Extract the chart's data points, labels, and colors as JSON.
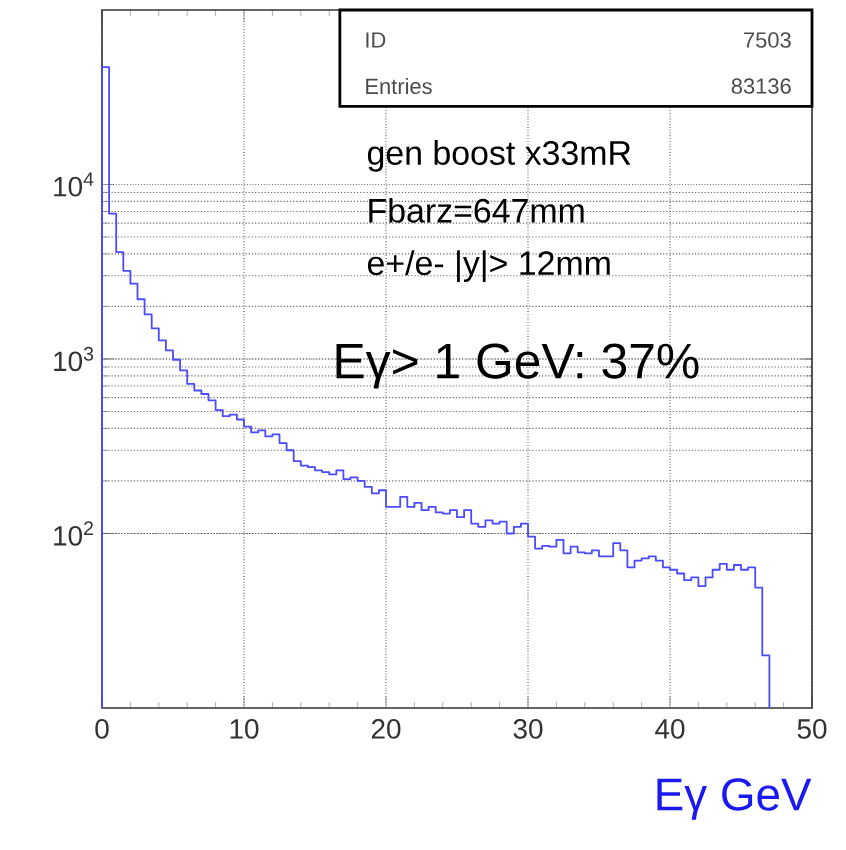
{
  "chart_data": {
    "type": "histogram",
    "xlabel": "Eγ GeV",
    "annotations": [
      "ID",
      "7503",
      "Entries",
      "83136",
      "gen boost x33mR",
      "Fbarz=647mm",
      "e+/e- |y|> 12mm",
      "Eγ> 1 GeV: 37%"
    ],
    "bins": [
      0,
      0.5,
      1,
      1.5,
      2,
      2.5,
      3,
      3.5,
      4,
      4.5,
      5,
      5.5,
      6,
      6.5,
      7,
      7.5,
      8,
      8.5,
      9,
      9.5,
      10,
      10.5,
      11,
      11.5,
      12,
      12.5,
      13,
      13.5,
      14,
      14.5,
      15,
      15.5,
      16,
      16.5,
      17,
      17.5,
      18,
      18.5,
      19,
      19.5,
      20,
      20.5,
      21,
      21.5,
      22,
      22.5,
      23,
      23.5,
      24,
      24.5,
      25,
      25.5,
      26,
      26.5,
      27,
      27.5,
      28,
      28.5,
      29,
      29.5,
      30,
      30.5,
      31,
      31.5,
      32,
      32.5,
      33,
      33.5,
      34,
      34.5,
      35,
      35.5,
      36,
      36.5,
      37,
      37.5,
      38,
      38.5,
      39,
      39.5,
      40,
      40.5,
      41,
      41.5,
      42,
      42.5,
      43,
      43.5,
      44,
      44.5,
      45,
      45.5,
      46,
      46.5,
      47
    ],
    "values": [
      47000,
      6800,
      4100,
      3200,
      2700,
      2200,
      1800,
      1500,
      1280,
      1120,
      990,
      860,
      720,
      660,
      630,
      580,
      510,
      470,
      480,
      450,
      410,
      380,
      390,
      360,
      370,
      330,
      300,
      260,
      245,
      240,
      230,
      225,
      218,
      230,
      205,
      210,
      200,
      185,
      170,
      177,
      142,
      142,
      162,
      142,
      150,
      136,
      142,
      132,
      130,
      136,
      124,
      136,
      114,
      109,
      119,
      114,
      117,
      100,
      109,
      114,
      96,
      82,
      85,
      84,
      92,
      77,
      84,
      78,
      77,
      80,
      74,
      74,
      88,
      80,
      64,
      70,
      72,
      74,
      70,
      64,
      62,
      59,
      54,
      56,
      50,
      56,
      62,
      67,
      62,
      66,
      62,
      64,
      49,
      20
    ],
    "color": "#4a4aff",
    "log": "y",
    "grid": true,
    "xlim": [
      0,
      50
    ],
    "xticks": [
      0,
      10,
      20,
      30,
      40,
      50
    ],
    "ylim": [
      10,
      100000
    ],
    "yticks": [
      {
        "value": 100,
        "label": "10$^{2}$"
      },
      {
        "value": 1000,
        "label": "10$^{3}$"
      },
      {
        "value": 10000,
        "label": "10$^{4}$"
      }
    ]
  }
}
